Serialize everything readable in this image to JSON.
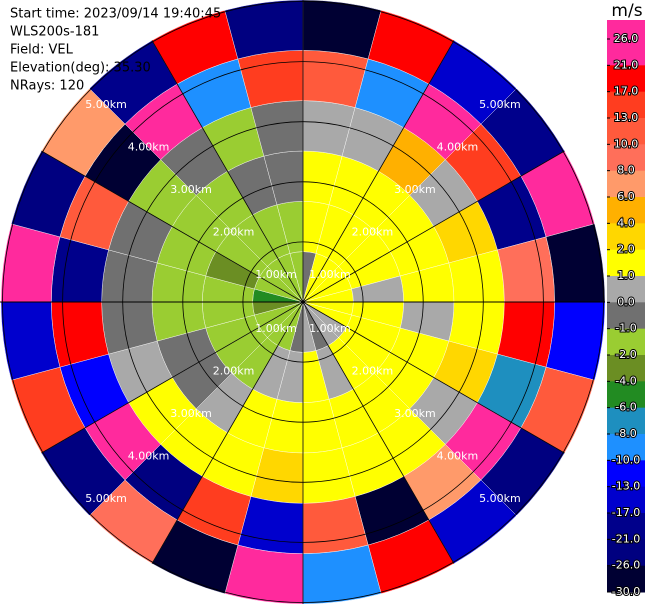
{
  "chart_data": {
    "type": "ppi",
    "info": [
      "Start time: 2023/09/14 19:40:45",
      "WLS200s-181",
      "Field: VEL",
      "Elevation(deg): 35.30",
      "NRays: 120"
    ],
    "ring_labels": [
      "1.00km",
      "2.00km",
      "3.00km",
      "4.00km",
      "5.00km"
    ],
    "values": [
      [
        -0.5,
        1.5,
        1.5,
        0.5,
        11.5,
        -28
      ],
      [
        1.5,
        1.5,
        1.5,
        0.5,
        -9,
        19
      ],
      [
        1.5,
        1.5,
        1.5,
        5,
        23,
        -15
      ],
      [
        1.5,
        1.5,
        1.5,
        0.5,
        15,
        -19
      ],
      [
        1.5,
        1.5,
        1.5,
        3,
        -19,
        23
      ],
      [
        1.5,
        0.5,
        1.5,
        1.5,
        9,
        -28
      ],
      [
        1.5,
        1.5,
        0.5,
        1.5,
        19,
        -11.5
      ],
      [
        1.5,
        1.5,
        1.5,
        3,
        -7,
        11.5
      ],
      [
        0.5,
        1.5,
        1.5,
        0.5,
        23,
        -23
      ],
      [
        0.5,
        1.5,
        1.5,
        1.5,
        7,
        -15
      ],
      [
        -0.5,
        0.5,
        1.5,
        1.5,
        -28,
        19
      ],
      [
        0.5,
        1.5,
        1.5,
        1.5,
        11.5,
        -9
      ],
      [
        -0.5,
        0.5,
        1.5,
        3,
        -15,
        23
      ],
      [
        -1.5,
        0.5,
        1.5,
        1.5,
        15,
        -28
      ],
      [
        -1.5,
        -1.5,
        0.5,
        1.5,
        -23,
        9
      ],
      [
        -1.5,
        -1.5,
        -0.5,
        1.5,
        23,
        -23
      ],
      [
        -1.5,
        -1.5,
        -0.5,
        0.5,
        -11.5,
        15
      ],
      [
        -3,
        -1.5,
        -1.5,
        -0.5,
        19,
        -15
      ],
      [
        -5,
        -1.5,
        -1.5,
        -0.5,
        -19,
        23
      ],
      [
        -1.5,
        -3,
        -1.5,
        -0.5,
        11.5,
        -23
      ],
      [
        -1.5,
        -1.5,
        -1.5,
        -1.5,
        -28,
        7
      ],
      [
        -1.5,
        -1.5,
        -1.5,
        -0.5,
        23,
        -19
      ],
      [
        -1.5,
        -1.5,
        -0.5,
        -1.5,
        -9,
        19
      ],
      [
        -1.5,
        -1.5,
        -0.5,
        -0.5,
        15,
        -23
      ]
    ],
    "colorbar_title": "m/s",
    "colorbar_ticks": [
      {
        "value": 26,
        "label": "26.0"
      },
      {
        "value": 21,
        "label": "21.0"
      },
      {
        "value": 17,
        "label": "17.0"
      },
      {
        "value": 13,
        "label": "13.0"
      },
      {
        "value": 10,
        "label": "10.0"
      },
      {
        "value": 8,
        "label": "8.0"
      },
      {
        "value": 6,
        "label": "6.0"
      },
      {
        "value": 4,
        "label": "4.0"
      },
      {
        "value": 2,
        "label": "2.0"
      },
      {
        "value": 1,
        "label": "1.0"
      },
      {
        "value": 0,
        "label": "0.0"
      },
      {
        "value": -1,
        "label": "-1.0"
      },
      {
        "value": -2,
        "label": "-2.0"
      },
      {
        "value": -4,
        "label": "-4.0"
      },
      {
        "value": -6,
        "label": "-6.0"
      },
      {
        "value": -8,
        "label": "-8.0"
      },
      {
        "value": -10,
        "label": "-10.0"
      },
      {
        "value": -13,
        "label": "-13.0"
      },
      {
        "value": -17,
        "label": "-17.0"
      },
      {
        "value": -21,
        "label": "-21.0"
      },
      {
        "value": -26,
        "label": "-26.0"
      },
      {
        "value": -30,
        "label": "-30.0"
      }
    ],
    "colorbar_colors": [
      "#ff2a9d",
      "#ff0000",
      "#ff3d1f",
      "#ff5a3c",
      "#ff6f5a",
      "#ff9a6a",
      "#ffb000",
      "#ffd700",
      "#ffff00",
      "#a9a9a9",
      "#707070",
      "#9acd32",
      "#6b8e23",
      "#228b22",
      "#1e8fbf",
      "#1e90ff",
      "#0000ff",
      "#0000cd",
      "#00008b",
      "#000080",
      "#000033"
    ]
  }
}
